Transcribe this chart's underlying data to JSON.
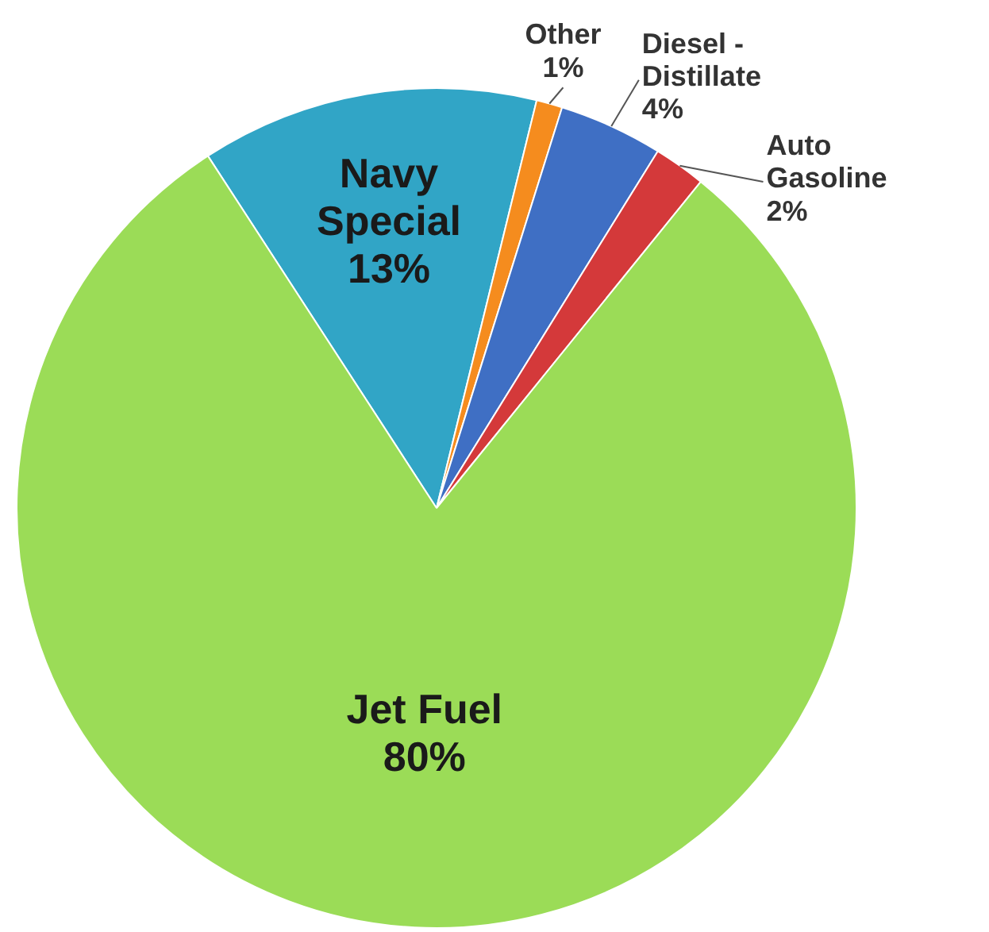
{
  "chart_data": {
    "type": "pie",
    "categories": [
      "Navy Special",
      "Other",
      "Diesel - Distillate",
      "Auto Gasoline",
      "Jet Fuel"
    ],
    "values": [
      13,
      1,
      4,
      2,
      80
    ],
    "colors": [
      "#31a5c6",
      "#f58c1e",
      "#3f6fc4",
      "#d4393a",
      "#9bdc57"
    ],
    "value_labels": [
      "13%",
      "1%",
      "4%",
      "2%",
      "80%"
    ],
    "legend": false
  }
}
